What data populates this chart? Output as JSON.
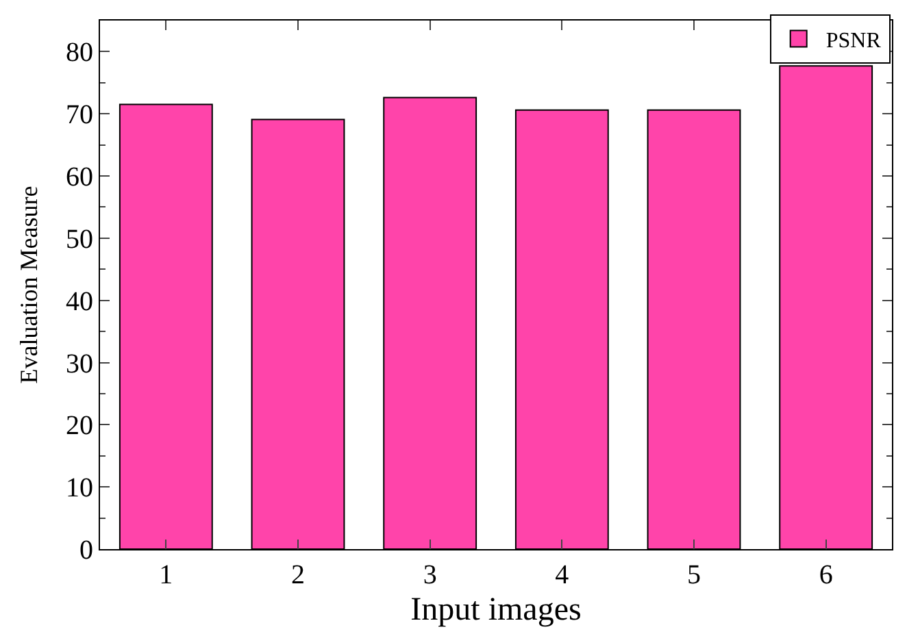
{
  "chart_data": {
    "type": "bar",
    "xlabel": "Input images",
    "ylabel": "Evaluation Measure",
    "categories": [
      "1",
      "2",
      "3",
      "4",
      "5",
      "6"
    ],
    "series": [
      {
        "name": "PSNR",
        "color": "#ff44aa",
        "values": [
          71.5,
          69.1,
          72.6,
          70.6,
          70.6,
          77.7
        ]
      }
    ],
    "ylim": [
      0,
      85
    ],
    "yticks": [
      0,
      10,
      20,
      30,
      40,
      50,
      60,
      70,
      80
    ],
    "legend": "top right"
  }
}
